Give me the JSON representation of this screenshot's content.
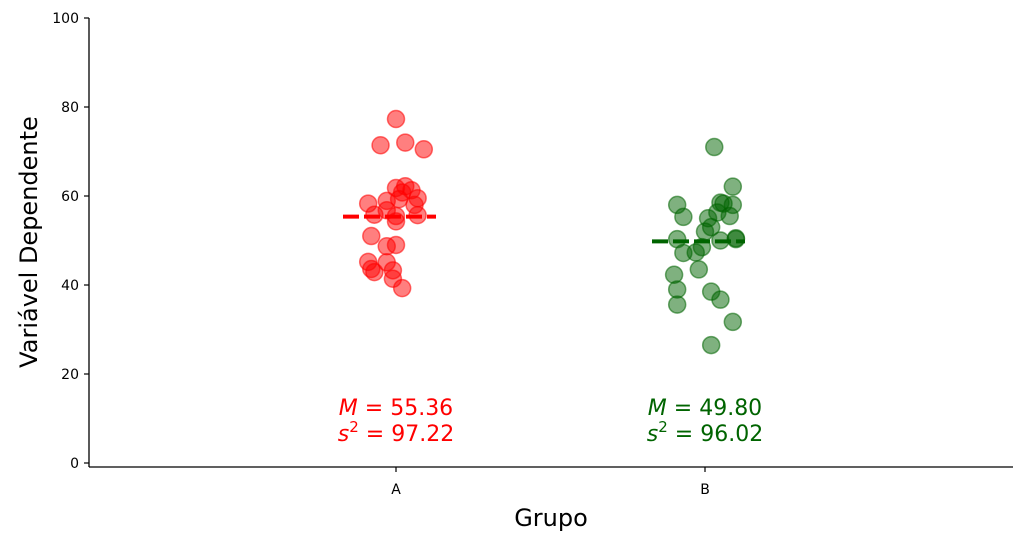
{
  "chart_data": {
    "type": "scatter",
    "xlabel": "Grupo",
    "ylabel": "Variável Dependente",
    "categories": [
      "A",
      "B"
    ],
    "ylim": [
      0,
      100
    ],
    "yticks": [
      "0",
      "20",
      "40",
      "60",
      "80",
      "100"
    ],
    "grid": false,
    "series": [
      {
        "name": "A",
        "color": "#ff0000",
        "mean": 55.36,
        "mean_label": "= 55.36",
        "variance_label": "= 97.22",
        "points": [
          {
            "x": 0.0,
            "y": 77.3
          },
          {
            "x": -0.05,
            "y": 71.4
          },
          {
            "x": 0.03,
            "y": 72.0
          },
          {
            "x": 0.09,
            "y": 70.5
          },
          {
            "x": 0.0,
            "y": 61.8
          },
          {
            "x": 0.03,
            "y": 62.2
          },
          {
            "x": 0.05,
            "y": 61.3
          },
          {
            "x": 0.02,
            "y": 60.8
          },
          {
            "x": 0.07,
            "y": 59.5
          },
          {
            "x": 0.01,
            "y": 59.3
          },
          {
            "x": 0.06,
            "y": 58.0
          },
          {
            "x": -0.09,
            "y": 58.3
          },
          {
            "x": -0.03,
            "y": 58.9
          },
          {
            "x": -0.03,
            "y": 56.8
          },
          {
            "x": -0.07,
            "y": 55.8
          },
          {
            "x": 0.07,
            "y": 55.7
          },
          {
            "x": 0.0,
            "y": 54.3
          },
          {
            "x": 0.0,
            "y": 55.5
          },
          {
            "x": -0.08,
            "y": 51.0
          },
          {
            "x": -0.03,
            "y": 48.7
          },
          {
            "x": 0.0,
            "y": 49.0
          },
          {
            "x": -0.09,
            "y": 45.2
          },
          {
            "x": -0.03,
            "y": 45.1
          },
          {
            "x": -0.08,
            "y": 43.6
          },
          {
            "x": -0.07,
            "y": 42.9
          },
          {
            "x": -0.01,
            "y": 43.3
          },
          {
            "x": -0.01,
            "y": 41.4
          },
          {
            "x": 0.02,
            "y": 39.3
          }
        ]
      },
      {
        "name": "B",
        "color": "#006400",
        "mean": 49.8,
        "mean_label": "= 49.80",
        "variance_label": "= 96.02",
        "points": [
          {
            "x": 0.03,
            "y": 71.0
          },
          {
            "x": 0.09,
            "y": 62.1
          },
          {
            "x": 0.05,
            "y": 58.5
          },
          {
            "x": 0.06,
            "y": 58.3
          },
          {
            "x": 0.09,
            "y": 58.0
          },
          {
            "x": -0.09,
            "y": 58.0
          },
          {
            "x": -0.07,
            "y": 55.3
          },
          {
            "x": 0.08,
            "y": 55.5
          },
          {
            "x": 0.01,
            "y": 55.0
          },
          {
            "x": 0.04,
            "y": 56.3
          },
          {
            "x": 0.02,
            "y": 53.0
          },
          {
            "x": 0.0,
            "y": 52.0
          },
          {
            "x": -0.09,
            "y": 50.3
          },
          {
            "x": 0.05,
            "y": 50.0
          },
          {
            "x": 0.1,
            "y": 50.5
          },
          {
            "x": 0.1,
            "y": 50.3
          },
          {
            "x": -0.07,
            "y": 47.2
          },
          {
            "x": -0.03,
            "y": 47.3
          },
          {
            "x": -0.01,
            "y": 48.5
          },
          {
            "x": -0.02,
            "y": 43.5
          },
          {
            "x": -0.1,
            "y": 42.3
          },
          {
            "x": -0.09,
            "y": 39.0
          },
          {
            "x": 0.02,
            "y": 38.5
          },
          {
            "x": 0.05,
            "y": 36.7
          },
          {
            "x": -0.09,
            "y": 35.6
          },
          {
            "x": 0.09,
            "y": 31.7
          },
          {
            "x": 0.02,
            "y": 26.5
          }
        ]
      }
    ]
  }
}
